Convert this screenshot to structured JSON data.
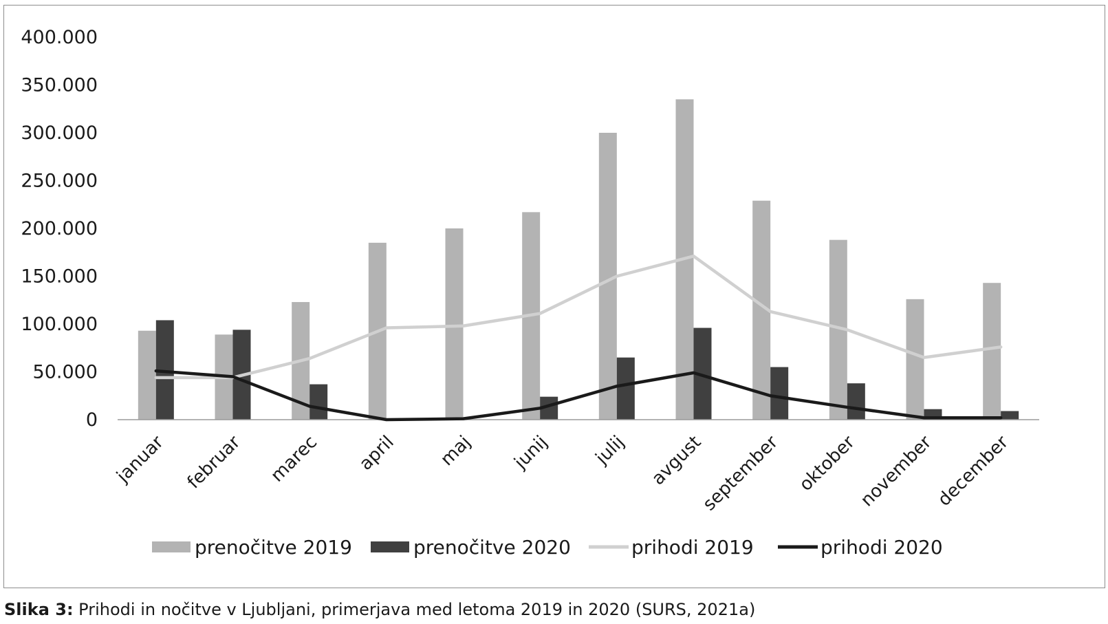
{
  "chart_data": {
    "type": "bar",
    "categories": [
      "januar",
      "februar",
      "marec",
      "april",
      "maj",
      "junij",
      "julij",
      "avgust",
      "september",
      "oktober",
      "november",
      "december"
    ],
    "series": [
      {
        "name": "prenočitve 2019",
        "kind": "bar",
        "color": "#b3b3b3",
        "values": [
          93000,
          89000,
          123000,
          185000,
          200000,
          217000,
          300000,
          335000,
          229000,
          188000,
          126000,
          143000
        ]
      },
      {
        "name": "prenočitve 2020",
        "kind": "bar",
        "color": "#404040",
        "values": [
          104000,
          94000,
          37000,
          0,
          0,
          24000,
          65000,
          96000,
          55000,
          38000,
          11000,
          9000
        ]
      },
      {
        "name": "prihodi 2019",
        "kind": "line",
        "color": "#d0d0d0",
        "values": [
          44000,
          44000,
          64000,
          96000,
          98000,
          111000,
          150000,
          171000,
          113000,
          94000,
          65000,
          76000
        ]
      },
      {
        "name": "prihodi 2020",
        "kind": "line",
        "color": "#1a1a1a",
        "values": [
          51000,
          45000,
          14000,
          0,
          1000,
          12000,
          35000,
          49000,
          25000,
          13000,
          2000,
          2000
        ]
      }
    ],
    "ylim": [
      0,
      400000
    ],
    "yticks": [
      0,
      50000,
      100000,
      150000,
      200000,
      250000,
      300000,
      350000,
      400000
    ],
    "ytick_labels": [
      "0",
      "50.000",
      "100.000",
      "150.000",
      "200.000",
      "250.000",
      "300.000",
      "350.000",
      "400.000"
    ],
    "grid": false,
    "legend_position": "bottom"
  },
  "caption": {
    "label": "Slika 3:",
    "text": " Prihodi in nočitve v Ljubljani, primerjava med letoma 2019 in 2020 (SURS, 2021a)"
  }
}
